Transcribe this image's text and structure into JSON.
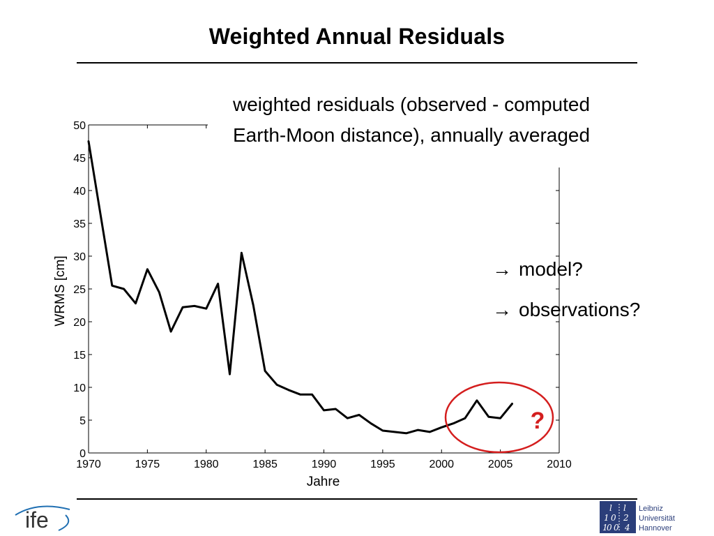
{
  "slide": {
    "title": "Weighted Annual Residuals",
    "description_lines": [
      "weighted residuals (observed - computed",
      "Earth-Moon distance), annually averaged"
    ],
    "bullets": [
      "model?",
      "observations?"
    ],
    "question_mark": "?",
    "ife_logo_text": "ife",
    "luh_logo_lines": [
      "Leibniz",
      "Universität",
      "Hannover"
    ],
    "luh_logo_glyphs": [
      "l",
      "l",
      "1",
      "0",
      "2",
      "1",
      "0",
      "0",
      "4"
    ]
  },
  "colors": {
    "line": "#000000",
    "highlight": "#d41e1e",
    "luh_blue": "#2b3e7a",
    "ife_blue": "#1f6fb2"
  },
  "chart_data": {
    "type": "line",
    "title": "",
    "xlabel": "Jahre",
    "ylabel": "WRMS [cm]",
    "xlim": [
      1970,
      2010
    ],
    "ylim": [
      0,
      50
    ],
    "xticks": [
      1970,
      1975,
      1980,
      1985,
      1990,
      1995,
      2000,
      2005,
      2010
    ],
    "yticks": [
      0,
      5,
      10,
      15,
      20,
      25,
      30,
      35,
      40,
      45,
      50
    ],
    "grid": false,
    "series": [
      {
        "x": [
          1970,
          1971,
          1972,
          1973,
          1974,
          1975,
          1976,
          1977,
          1978,
          1979,
          1980,
          1981,
          1982,
          1983,
          1984,
          1985,
          1986,
          1987,
          1988,
          1989,
          1990,
          1991,
          1992,
          1993,
          1994,
          1995,
          1996,
          1997,
          1998,
          1999,
          2000,
          2001,
          2002,
          2003,
          2004,
          2005,
          2006
        ],
        "y": [
          47.5,
          36.5,
          25.5,
          25.0,
          22.8,
          28.0,
          24.5,
          18.5,
          22.2,
          22.4,
          22.0,
          25.8,
          12.0,
          30.5,
          22.5,
          12.5,
          10.4,
          9.6,
          8.9,
          8.9,
          6.5,
          6.7,
          5.3,
          5.8,
          4.5,
          3.4,
          3.2,
          3.0,
          3.5,
          3.2,
          3.9,
          4.5,
          5.3,
          8.0,
          5.5,
          5.3,
          7.5
        ]
      }
    ],
    "annotations": [
      "?"
    ]
  }
}
